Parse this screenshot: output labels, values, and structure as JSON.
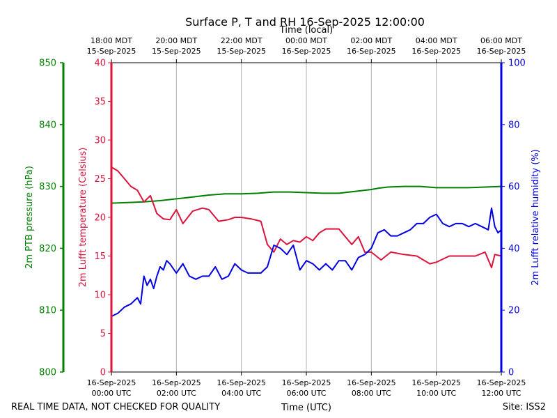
{
  "chart_data": {
    "type": "line",
    "title": "Surface P, T and RH 16-Sep-2025 12:00:00",
    "top_axis_label": "Time (local)",
    "bottom_axis_label": "Time (UTC)",
    "footer_left": "REAL TIME DATA, NOT CHECKED FOR QUALITY",
    "footer_right": "Site: ISS2",
    "x_range_hours_utc": [
      0,
      12
    ],
    "top_ticks": [
      {
        "h": 0,
        "line1": "18:00 MDT",
        "line2": "15-Sep-2025"
      },
      {
        "h": 2,
        "line1": "20:00 MDT",
        "line2": "15-Sep-2025"
      },
      {
        "h": 4,
        "line1": "22:00 MDT",
        "line2": "15-Sep-2025"
      },
      {
        "h": 6,
        "line1": "00:00 MDT",
        "line2": "16-Sep-2025"
      },
      {
        "h": 8,
        "line1": "02:00 MDT",
        "line2": "16-Sep-2025"
      },
      {
        "h": 10,
        "line1": "04:00 MDT",
        "line2": "16-Sep-2025"
      },
      {
        "h": 12,
        "line1": "06:00 MDT",
        "line2": "16-Sep-2025"
      }
    ],
    "bottom_ticks": [
      {
        "h": 0,
        "line1": "16-Sep-2025",
        "line2": "00:00 UTC"
      },
      {
        "h": 2,
        "line1": "16-Sep-2025",
        "line2": "02:00 UTC"
      },
      {
        "h": 4,
        "line1": "16-Sep-2025",
        "line2": "04:00 UTC"
      },
      {
        "h": 6,
        "line1": "16-Sep-2025",
        "line2": "06:00 UTC"
      },
      {
        "h": 8,
        "line1": "16-Sep-2025",
        "line2": "08:00 UTC"
      },
      {
        "h": 10,
        "line1": "16-Sep-2025",
        "line2": "10:00 UTC"
      },
      {
        "h": 12,
        "line1": "16-Sep-2025",
        "line2": "12:00 UTC"
      }
    ],
    "axes": {
      "pressure": {
        "label": "2m PTB pressure (hPa)",
        "ylim": [
          800,
          850
        ],
        "ticks": [
          800,
          810,
          820,
          830,
          840,
          850
        ],
        "color": "#008000"
      },
      "temperature": {
        "label": "2m Lufft temperature (Celsius)",
        "ylim": [
          0,
          40
        ],
        "ticks": [
          0,
          5,
          10,
          15,
          20,
          25,
          30,
          35,
          40
        ],
        "color": "#dc143c"
      },
      "humidity": {
        "label": "2m Lufft relative humidity (%)",
        "ylim": [
          0,
          100
        ],
        "ticks": [
          0,
          20,
          40,
          60,
          80,
          100
        ],
        "color": "#0000e0"
      }
    },
    "series": [
      {
        "name": "2m PTB pressure (hPa)",
        "axis": "pressure",
        "color": "#008000",
        "x": [
          0,
          0.5,
          1,
          1.5,
          2,
          2.5,
          3,
          3.5,
          4,
          4.5,
          5,
          5.5,
          6,
          6.5,
          7,
          7.5,
          8,
          8.2,
          8.5,
          9,
          9.5,
          10,
          10.5,
          11,
          11.5,
          12
        ],
        "y": [
          827.3,
          827.4,
          827.5,
          827.7,
          828.0,
          828.3,
          828.6,
          828.8,
          828.8,
          828.9,
          829.1,
          829.1,
          829.0,
          828.9,
          828.9,
          829.2,
          829.5,
          829.7,
          829.9,
          830.0,
          830.0,
          829.8,
          829.8,
          829.8,
          829.9,
          830.0
        ]
      },
      {
        "name": "2m Lufft temperature (Celsius)",
        "axis": "temperature",
        "color": "#dc143c",
        "x": [
          0,
          0.2,
          0.4,
          0.6,
          0.8,
          1.0,
          1.2,
          1.4,
          1.6,
          1.8,
          2.0,
          2.2,
          2.5,
          2.8,
          3.0,
          3.3,
          3.6,
          3.8,
          4.0,
          4.3,
          4.6,
          4.8,
          5.0,
          5.2,
          5.4,
          5.6,
          5.8,
          6.0,
          6.2,
          6.4,
          6.6,
          6.8,
          7.0,
          7.2,
          7.4,
          7.6,
          7.8,
          8.0,
          8.3,
          8.6,
          9.0,
          9.4,
          9.8,
          10.0,
          10.4,
          10.8,
          11.2,
          11.5,
          11.7,
          11.8,
          12.0
        ],
        "y": [
          26.5,
          26.0,
          25.0,
          24.0,
          23.5,
          22.0,
          22.8,
          20.5,
          19.8,
          19.7,
          21.0,
          19.2,
          20.8,
          21.2,
          21.0,
          19.5,
          19.7,
          20.0,
          20.0,
          19.8,
          19.5,
          16.5,
          15.5,
          17.2,
          16.5,
          17.0,
          16.8,
          17.5,
          17.0,
          18.0,
          18.5,
          18.5,
          18.5,
          17.5,
          16.5,
          17.5,
          15.5,
          15.5,
          14.5,
          15.5,
          15.2,
          15.0,
          14.0,
          14.2,
          15.0,
          15.0,
          15.0,
          15.5,
          13.5,
          15.2,
          15.0
        ]
      },
      {
        "name": "2m Lufft relative humidity (%)",
        "axis": "humidity",
        "color": "#0000e0",
        "x": [
          0,
          0.2,
          0.4,
          0.6,
          0.8,
          0.9,
          1.0,
          1.1,
          1.2,
          1.3,
          1.4,
          1.5,
          1.6,
          1.7,
          1.8,
          2.0,
          2.2,
          2.4,
          2.6,
          2.8,
          3.0,
          3.2,
          3.4,
          3.6,
          3.8,
          4.0,
          4.2,
          4.4,
          4.6,
          4.8,
          5.0,
          5.2,
          5.4,
          5.6,
          5.8,
          6.0,
          6.2,
          6.4,
          6.6,
          6.8,
          7.0,
          7.2,
          7.4,
          7.6,
          7.8,
          8.0,
          8.2,
          8.4,
          8.6,
          8.8,
          9.0,
          9.2,
          9.4,
          9.6,
          9.8,
          10.0,
          10.2,
          10.4,
          10.6,
          10.8,
          11.0,
          11.2,
          11.4,
          11.6,
          11.7,
          11.8,
          11.9,
          12.0
        ],
        "y": [
          18,
          19,
          21,
          22,
          24,
          22,
          31,
          28,
          30,
          27,
          31,
          34,
          33,
          36,
          35,
          32,
          35,
          31,
          30,
          31,
          31,
          34,
          30,
          31,
          35,
          33,
          32,
          32,
          32,
          34,
          41,
          40,
          38,
          41,
          33,
          36,
          35,
          33,
          35,
          33,
          36,
          36,
          33,
          37,
          38,
          40,
          45,
          46,
          44,
          44,
          45,
          46,
          48,
          48,
          50,
          51,
          48,
          47,
          48,
          48,
          47,
          48,
          47,
          46,
          53,
          47,
          45,
          46
        ]
      }
    ]
  }
}
